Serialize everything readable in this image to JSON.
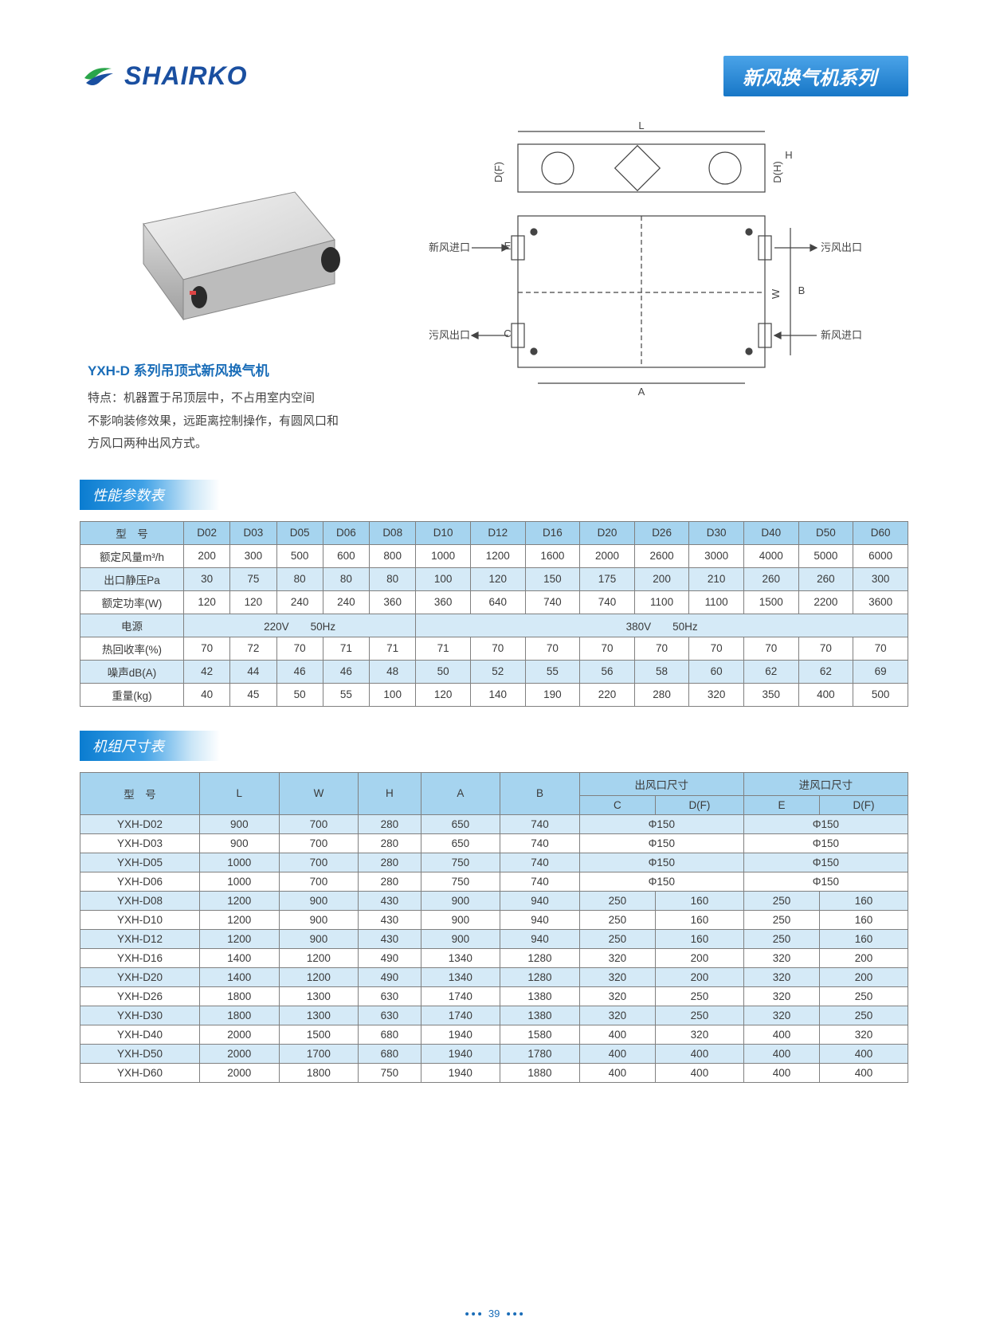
{
  "brand": "SHAIRKO",
  "header_band": "新风换气机系列",
  "product_title": "YXH-D 系列吊顶式新风换气机",
  "product_desc_lines": [
    "特点：机器置于吊顶层中，不占用室内空间",
    "不影响装修效果，远距离控制操作，有圆风口和",
    "方风口两种出风方式。"
  ],
  "diagram_labels": {
    "L": "L",
    "A": "A",
    "B": "B",
    "W": "W",
    "H": "H",
    "DF": "D(F)",
    "DH": "D(H)",
    "E": "E",
    "C": "C",
    "fresh_in": "新风进口",
    "dirty_out": "污风出口",
    "dirty_in": "污风出口",
    "fresh_out": "新风进口"
  },
  "perf_section_title": "性能参数表",
  "dim_section_title": "机组尺寸表",
  "perf_table": {
    "col_heads": [
      "型　号",
      "D02",
      "D03",
      "D05",
      "D06",
      "D08",
      "D10",
      "D12",
      "D16",
      "D20",
      "D26",
      "D30",
      "D40",
      "D50",
      "D60"
    ],
    "rows": [
      {
        "label": "额定风量m³/h",
        "cells": [
          "200",
          "300",
          "500",
          "600",
          "800",
          "1000",
          "1200",
          "1600",
          "2000",
          "2600",
          "3000",
          "4000",
          "5000",
          "6000"
        ],
        "alt": false
      },
      {
        "label": "出口静压Pa",
        "cells": [
          "30",
          "75",
          "80",
          "80",
          "80",
          "100",
          "120",
          "150",
          "175",
          "200",
          "210",
          "260",
          "260",
          "300"
        ],
        "alt": true
      },
      {
        "label": "额定功率(W)",
        "cells": [
          "120",
          "120",
          "240",
          "240",
          "360",
          "360",
          "640",
          "740",
          "740",
          "1100",
          "1100",
          "1500",
          "2200",
          "3600"
        ],
        "alt": false
      },
      {
        "label": "电源",
        "merged": [
          {
            "text": "220V　　50Hz",
            "span": 5
          },
          {
            "text": "380V　　50Hz",
            "span": 9
          }
        ],
        "alt": true
      },
      {
        "label": "热回收率(%)",
        "cells": [
          "70",
          "72",
          "70",
          "71",
          "71",
          "71",
          "70",
          "70",
          "70",
          "70",
          "70",
          "70",
          "70",
          "70"
        ],
        "alt": false
      },
      {
        "label": "噪声dB(A)",
        "cells": [
          "42",
          "44",
          "46",
          "46",
          "48",
          "50",
          "52",
          "55",
          "56",
          "58",
          "60",
          "62",
          "62",
          "69"
        ],
        "alt": true
      },
      {
        "label": "重量(kg)",
        "cells": [
          "40",
          "45",
          "50",
          "55",
          "100",
          "120",
          "140",
          "190",
          "220",
          "280",
          "320",
          "350",
          "400",
          "500"
        ],
        "alt": false
      }
    ]
  },
  "dim_table": {
    "head_row1": [
      "型　号",
      "L",
      "W",
      "H",
      "A",
      "B",
      "出风口尺寸",
      "进风口尺寸"
    ],
    "head_row2": [
      "C",
      "D(F)",
      "E",
      "D(F)"
    ],
    "rows": [
      {
        "m": "YXH-D02",
        "c": [
          "900",
          "700",
          "280",
          "650",
          "740",
          {
            "t": "Φ150",
            "s": 2
          },
          {
            "t": "Φ150",
            "s": 2
          }
        ],
        "alt": true
      },
      {
        "m": "YXH-D03",
        "c": [
          "900",
          "700",
          "280",
          "650",
          "740",
          {
            "t": "Φ150",
            "s": 2
          },
          {
            "t": "Φ150",
            "s": 2
          }
        ],
        "alt": false
      },
      {
        "m": "YXH-D05",
        "c": [
          "1000",
          "700",
          "280",
          "750",
          "740",
          {
            "t": "Φ150",
            "s": 2
          },
          {
            "t": "Φ150",
            "s": 2
          }
        ],
        "alt": true
      },
      {
        "m": "YXH-D06",
        "c": [
          "1000",
          "700",
          "280",
          "750",
          "740",
          {
            "t": "Φ150",
            "s": 2
          },
          {
            "t": "Φ150",
            "s": 2
          }
        ],
        "alt": false
      },
      {
        "m": "YXH-D08",
        "c": [
          "1200",
          "900",
          "430",
          "900",
          "940",
          "250",
          "160",
          "250",
          "160"
        ],
        "alt": true
      },
      {
        "m": "YXH-D10",
        "c": [
          "1200",
          "900",
          "430",
          "900",
          "940",
          "250",
          "160",
          "250",
          "160"
        ],
        "alt": false
      },
      {
        "m": "YXH-D12",
        "c": [
          "1200",
          "900",
          "430",
          "900",
          "940",
          "250",
          "160",
          "250",
          "160"
        ],
        "alt": true
      },
      {
        "m": "YXH-D16",
        "c": [
          "1400",
          "1200",
          "490",
          "1340",
          "1280",
          "320",
          "200",
          "320",
          "200"
        ],
        "alt": false
      },
      {
        "m": "YXH-D20",
        "c": [
          "1400",
          "1200",
          "490",
          "1340",
          "1280",
          "320",
          "200",
          "320",
          "200"
        ],
        "alt": true
      },
      {
        "m": "YXH-D26",
        "c": [
          "1800",
          "1300",
          "630",
          "1740",
          "1380",
          "320",
          "250",
          "320",
          "250"
        ],
        "alt": false
      },
      {
        "m": "YXH-D30",
        "c": [
          "1800",
          "1300",
          "630",
          "1740",
          "1380",
          "320",
          "250",
          "320",
          "250"
        ],
        "alt": true
      },
      {
        "m": "YXH-D40",
        "c": [
          "2000",
          "1500",
          "680",
          "1940",
          "1580",
          "400",
          "320",
          "400",
          "320"
        ],
        "alt": false
      },
      {
        "m": "YXH-D50",
        "c": [
          "2000",
          "1700",
          "680",
          "1940",
          "1780",
          "400",
          "400",
          "400",
          "400"
        ],
        "alt": true
      },
      {
        "m": "YXH-D60",
        "c": [
          "2000",
          "1800",
          "750",
          "1940",
          "1880",
          "400",
          "400",
          "400",
          "400"
        ],
        "alt": false
      }
    ]
  },
  "page_number": "39",
  "colors": {
    "brand_blue": "#1a4fa0",
    "band_top": "#4aa3e8",
    "band_bottom": "#1877c7",
    "table_header_bg": "#a6d4ef",
    "table_alt_bg": "#d5eaf7",
    "table_border": "#808080",
    "text": "#3a3a3a",
    "link_blue": "#1a6db8"
  }
}
